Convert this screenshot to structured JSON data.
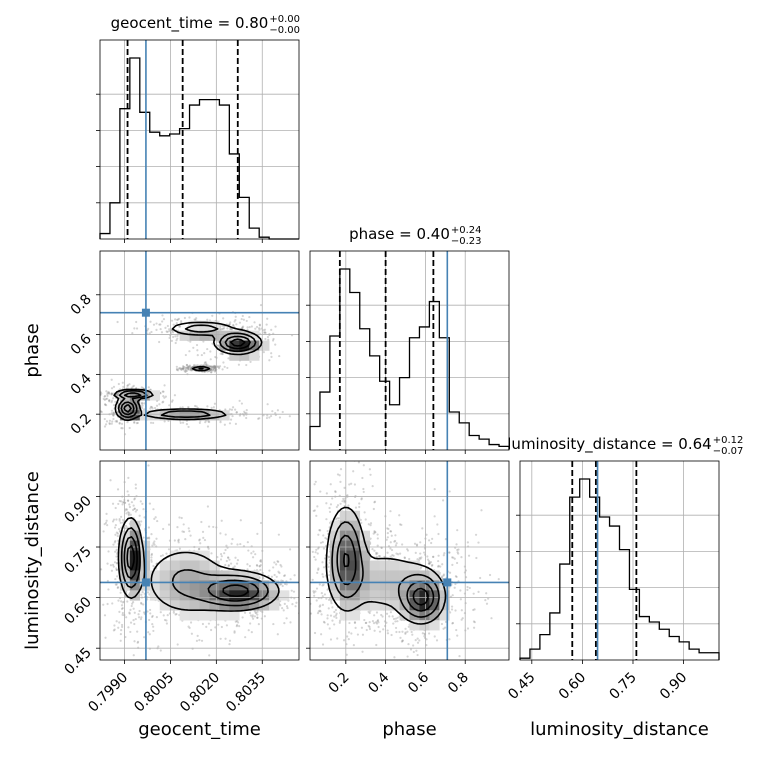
{
  "chart_data": {
    "type": "corner",
    "parameters": [
      {
        "key": "geocent_time",
        "label": "geocent_time",
        "range": [
          0.7982,
          0.8047
        ],
        "ticks": [
          "0.7990",
          "0.8005",
          "0.8020",
          "0.8035"
        ],
        "tick_values": [
          0.799,
          0.8005,
          0.802,
          0.8035
        ],
        "title": {
          "text": "geocent_time = 0.80",
          "sup": "+0.00",
          "sub": "−0.00"
        },
        "quantiles": [
          0.7991,
          0.8009,
          0.8027
        ],
        "truth": 0.7997,
        "hist_edges_start": 0.7982,
        "hist_bin_width": 0.000325,
        "hist": [
          0.03,
          0.2,
          0.72,
          1.0,
          0.7,
          0.59,
          0.57,
          0.58,
          0.61,
          0.74,
          0.77,
          0.77,
          0.74,
          0.47,
          0.23,
          0.06,
          0.01,
          0.0,
          0.0,
          0.0
        ]
      },
      {
        "key": "phase",
        "label": "phase",
        "range": [
          0.02,
          1.02
        ],
        "ticks": [
          "0.2",
          "0.4",
          "0.6",
          "0.8"
        ],
        "tick_values": [
          0.2,
          0.4,
          0.6,
          0.8
        ],
        "title": {
          "text": "phase = 0.40",
          "sup": "+0.24",
          "sub": "−0.23"
        },
        "quantiles": [
          0.17,
          0.4,
          0.64
        ],
        "truth": 0.71,
        "hist_edges_start": 0.02,
        "hist_bin_width": 0.05,
        "hist": [
          0.13,
          0.32,
          0.63,
          1.0,
          0.87,
          0.67,
          0.52,
          0.38,
          0.25,
          0.4,
          0.62,
          0.68,
          0.82,
          0.62,
          0.21,
          0.15,
          0.08,
          0.06,
          0.03,
          0.02
        ]
      },
      {
        "key": "luminosity_distance",
        "label": "luminosity_distance",
        "range": [
          0.415,
          1.005
        ],
        "ticks": [
          "0.45",
          "0.60",
          "0.75",
          "0.90"
        ],
        "tick_values": [
          0.45,
          0.6,
          0.75,
          0.9
        ],
        "title": {
          "text": "luminosity_distance = 0.64",
          "sup": "+0.12",
          "sub": "−0.07"
        },
        "quantiles": [
          0.57,
          0.64,
          0.76
        ],
        "truth": 0.645,
        "hist_edges_start": 0.415,
        "hist_bin_width": 0.0295,
        "hist": [
          0.01,
          0.06,
          0.14,
          0.26,
          0.53,
          0.9,
          1.0,
          0.9,
          0.79,
          0.74,
          0.61,
          0.39,
          0.24,
          0.21,
          0.17,
          0.13,
          0.1,
          0.06,
          0.04,
          0.04
        ]
      }
    ],
    "truth_color": "#4682b4",
    "contour_levels": 4,
    "density_peaks": {
      "geocent_time_vs_phase": [
        {
          "x": 0.7993,
          "y": 0.3,
          "sx": 0.00035,
          "sy": 0.012,
          "w": 0.8,
          "kind": "curve"
        },
        {
          "x": 0.7991,
          "y": 0.23,
          "sx": 0.0002,
          "sy": 0.03,
          "w": 1.0,
          "kind": "blob"
        },
        {
          "x": 0.8027,
          "y": 0.56,
          "sx": 0.0004,
          "sy": 0.03,
          "w": 1.0,
          "kind": "blob"
        },
        {
          "x": 0.801,
          "y": 0.2,
          "sx": 0.0008,
          "sy": 0.015,
          "w": 0.6,
          "kind": "blob"
        },
        {
          "x": 0.8015,
          "y": 0.63,
          "sx": 0.0006,
          "sy": 0.02,
          "w": 0.5,
          "kind": "blob"
        },
        {
          "x": 0.8015,
          "y": 0.43,
          "sx": 0.0002,
          "sy": 0.005,
          "w": 0.4,
          "kind": "blob"
        }
      ],
      "geocent_time_vs_luminosity_distance": [
        {
          "x": 0.7992,
          "y": 0.72,
          "sx": 0.0002,
          "sy": 0.06,
          "w": 1.0
        },
        {
          "x": 0.8027,
          "y": 0.62,
          "sx": 0.0007,
          "sy": 0.03,
          "w": 0.95
        },
        {
          "x": 0.801,
          "y": 0.65,
          "sx": 0.0008,
          "sy": 0.06,
          "w": 0.4
        }
      ],
      "phase_vs_luminosity_distance": [
        {
          "x": 0.2,
          "y": 0.72,
          "sx": 0.05,
          "sy": 0.08,
          "w": 0.9
        },
        {
          "x": 0.58,
          "y": 0.6,
          "sx": 0.06,
          "sy": 0.04,
          "w": 1.0
        },
        {
          "x": 0.4,
          "y": 0.65,
          "sx": 0.15,
          "sy": 0.06,
          "w": 0.3
        }
      ]
    }
  }
}
